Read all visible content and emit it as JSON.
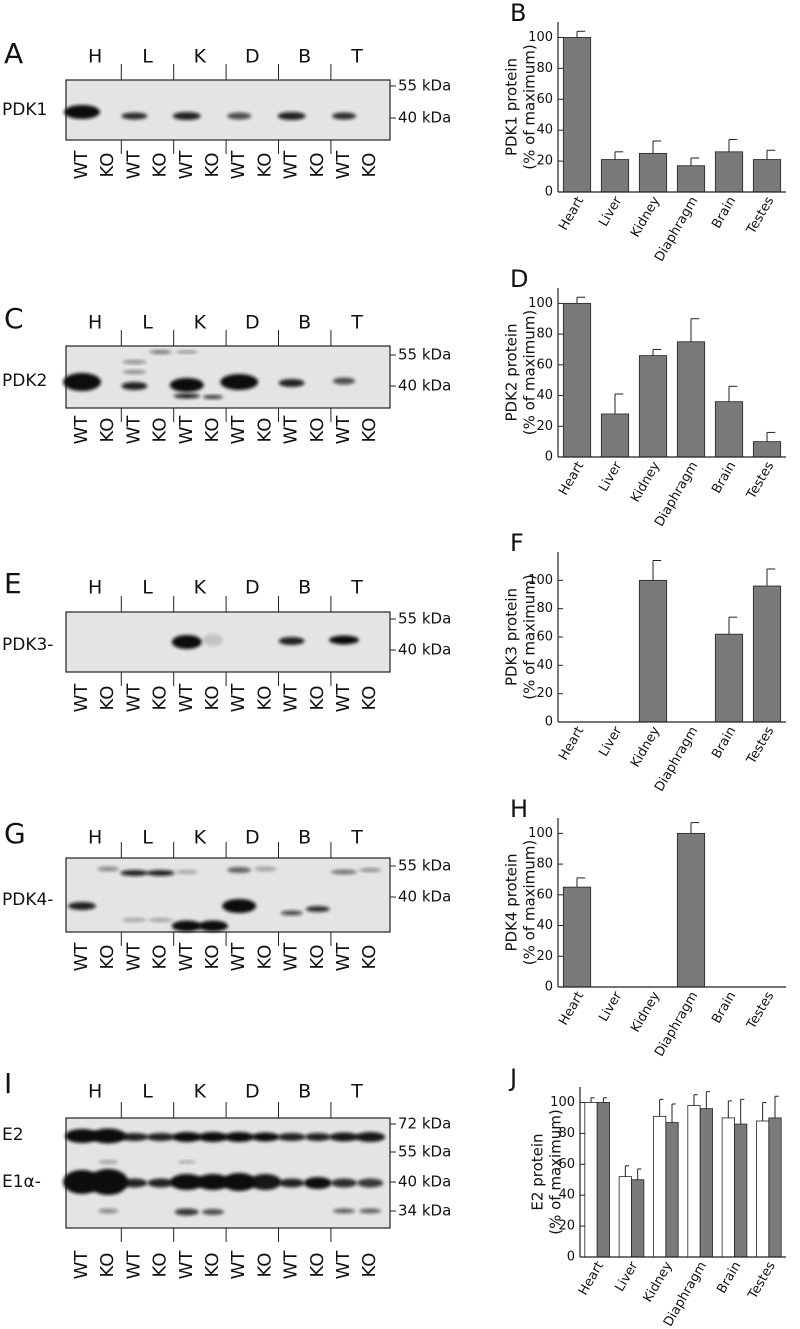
{
  "chart_data": [
    {
      "type": "bar",
      "panel": "B",
      "y_label": [
        "PDK1 protein",
        "(% of maximum)"
      ],
      "categories": [
        "Heart",
        "Liver",
        "Kidney",
        "Diaphragm",
        "Brain",
        "Testes"
      ],
      "series": [
        {
          "color": "#7a7a7a",
          "values": [
            100,
            21,
            25,
            17,
            26,
            21
          ],
          "errors": [
            4,
            5,
            8,
            5,
            8,
            6
          ]
        }
      ],
      "ylim": [
        0,
        110
      ],
      "yticks": [
        0,
        20,
        40,
        60,
        80,
        100
      ]
    },
    {
      "type": "bar",
      "panel": "D",
      "y_label": [
        "PDK2 protein",
        "(% of maximum)"
      ],
      "categories": [
        "Heart",
        "Liver",
        "Kidney",
        "Diaphragm",
        "Brain",
        "Testes"
      ],
      "series": [
        {
          "color": "#7a7a7a",
          "values": [
            100,
            28,
            66,
            75,
            36,
            10
          ],
          "errors": [
            4,
            13,
            4,
            15,
            10,
            6
          ]
        }
      ],
      "ylim": [
        0,
        110
      ],
      "yticks": [
        0,
        20,
        40,
        60,
        80,
        100
      ]
    },
    {
      "type": "bar",
      "panel": "F",
      "y_label": [
        "PDK3 protein",
        "(% of maximum)"
      ],
      "categories": [
        "Heart",
        "Liver",
        "Kidney",
        "Diaphragm",
        "Brain",
        "Testes"
      ],
      "series": [
        {
          "color": "#7a7a7a",
          "values": [
            0,
            0,
            100,
            0,
            62,
            96
          ],
          "errors": [
            0,
            0,
            14,
            0,
            12,
            12
          ]
        }
      ],
      "ylim": [
        0,
        120
      ],
      "yticks": [
        0,
        20,
        40,
        60,
        80,
        100
      ]
    },
    {
      "type": "bar",
      "panel": "H",
      "y_label": [
        "PDK4 protein",
        "(% of maximum)"
      ],
      "categories": [
        "Heart",
        "Liver",
        "Kidney",
        "Diaphragm",
        "Brain",
        "Testes"
      ],
      "series": [
        {
          "color": "#7a7a7a",
          "values": [
            65,
            0,
            0,
            100,
            0,
            0
          ],
          "errors": [
            6,
            0,
            0,
            7,
            0,
            0
          ]
        }
      ],
      "ylim": [
        0,
        110
      ],
      "yticks": [
        0,
        20,
        40,
        60,
        80,
        100
      ]
    },
    {
      "type": "bar",
      "panel": "J",
      "y_label": [
        "E2 protein",
        "(% of maximum)"
      ],
      "categories": [
        "Heart",
        "Liver",
        "Kidney",
        "Diaphragm",
        "Brain",
        "Testes"
      ],
      "series": [
        {
          "color": "#ffffff",
          "values": [
            100,
            52,
            91,
            98,
            90,
            88
          ],
          "errors": [
            3,
            7,
            11,
            7,
            11,
            12
          ]
        },
        {
          "color": "#7a7a7a",
          "values": [
            100,
            50,
            87,
            96,
            86,
            90
          ],
          "errors": [
            3,
            7,
            12,
            11,
            16,
            14
          ]
        }
      ],
      "ylim": [
        0,
        110
      ],
      "yticks": [
        0,
        20,
        40,
        60,
        80,
        100
      ]
    }
  ],
  "blots": [
    {
      "panel": "A",
      "tissues": [
        "H",
        "L",
        "K",
        "D",
        "B",
        "T"
      ],
      "proteins": [
        "PDK1"
      ],
      "markers": [
        "55 kDa",
        "40 kDa"
      ],
      "genotypes": [
        "WT",
        "KO",
        "WT",
        "KO",
        "WT",
        "KO",
        "WT",
        "KO",
        "WT",
        "KO",
        "WT",
        "KO"
      ]
    },
    {
      "panel": "C",
      "tissues": [
        "H",
        "L",
        "K",
        "D",
        "B",
        "T"
      ],
      "proteins": [
        "PDK2"
      ],
      "markers": [
        "55 kDa",
        "40 kDa"
      ],
      "genotypes": [
        "WT",
        "KO",
        "WT",
        "KO",
        "WT",
        "KO",
        "WT",
        "KO",
        "WT",
        "KO",
        "WT",
        "KO"
      ]
    },
    {
      "panel": "E",
      "tissues": [
        "H",
        "L",
        "K",
        "D",
        "B",
        "T"
      ],
      "proteins": [
        "PDK3-"
      ],
      "markers": [
        "55 kDa",
        "40 kDa"
      ],
      "genotypes": [
        "WT",
        "KO",
        "WT",
        "KO",
        "WT",
        "KO",
        "WT",
        "KO",
        "WT",
        "KO",
        "WT",
        "KO"
      ]
    },
    {
      "panel": "G",
      "tissues": [
        "H",
        "L",
        "K",
        "D",
        "B",
        "T"
      ],
      "proteins": [
        "PDK4-"
      ],
      "markers": [
        "55 kDa",
        "40 kDa"
      ],
      "genotypes": [
        "WT",
        "KO",
        "WT",
        "KO",
        "WT",
        "KO",
        "WT",
        "KO",
        "WT",
        "KO",
        "WT",
        "KO"
      ]
    },
    {
      "panel": "I",
      "tissues": [
        "H",
        "L",
        "K",
        "D",
        "B",
        "T"
      ],
      "proteins": [
        "E2",
        "E1α-"
      ],
      "markers": [
        "72 kDa",
        "55 kDa",
        "40 kDa",
        "34 kDa"
      ],
      "genotypes": [
        "WT",
        "KO",
        "WT",
        "KO",
        "WT",
        "KO",
        "WT",
        "KO",
        "WT",
        "KO",
        "WT",
        "KO"
      ]
    }
  ]
}
